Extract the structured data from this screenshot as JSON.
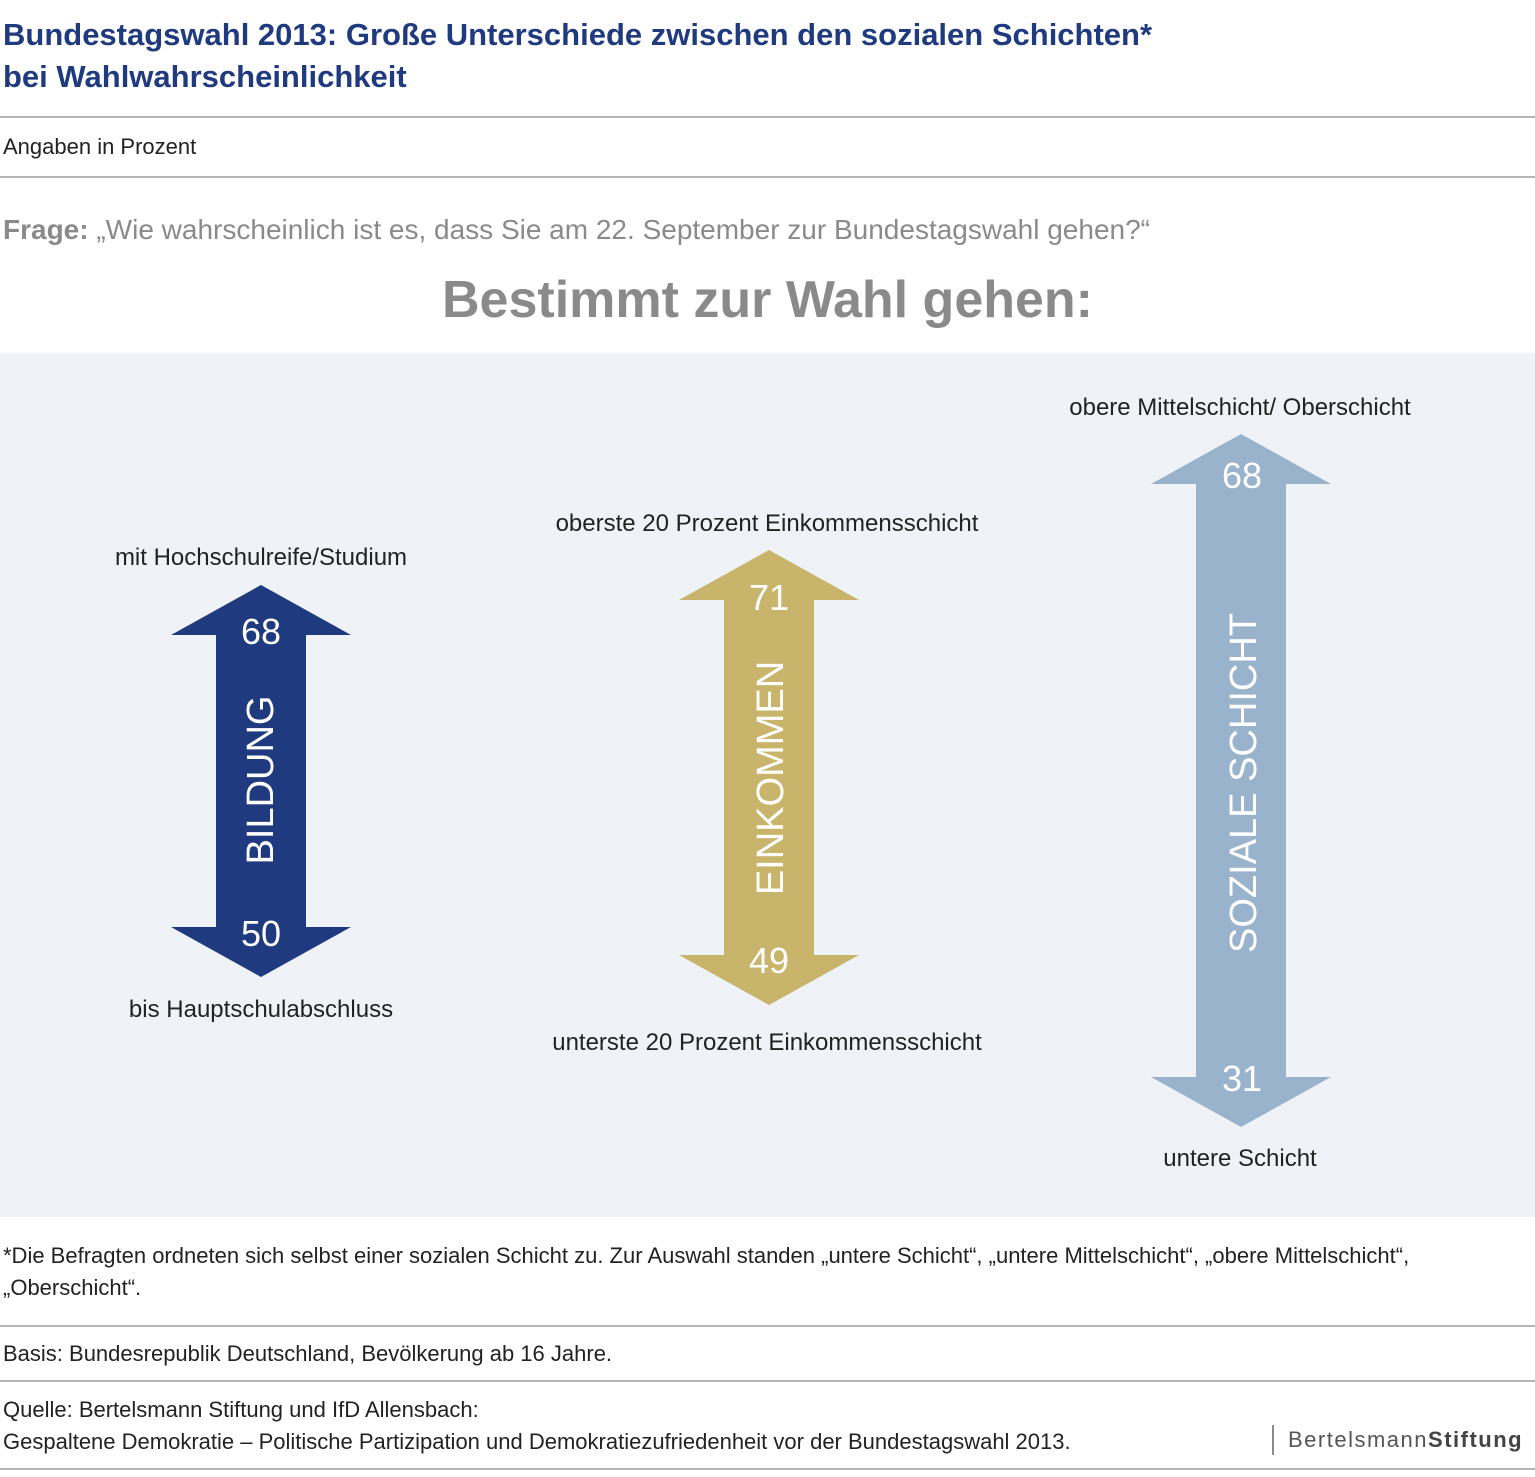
{
  "header": {
    "title_line1": "Bundestagswahl 2013: Große Unterschiede zwischen den sozialen Schichten*",
    "title_line2": "bei Wahlwahrscheinlichkeit",
    "units": "Angaben in Prozent",
    "question_label": "Frage:",
    "question_text": "„Wie wahrscheinlich ist es, dass Sie am 22. September zur Bundestagswahl gehen?“",
    "headline": "Bestimmt zur Wahl gehen:"
  },
  "chart_data": {
    "type": "range-arrows",
    "unit": "Prozent",
    "groups": [
      {
        "name": "BILDUNG",
        "color": "#1f3a7e",
        "high_label": "mit Hochschulreife/Studium",
        "high": 68,
        "low_label": "bis Hauptschulabschluss",
        "low": 50
      },
      {
        "name": "EINKOMMEN",
        "color": "#c8b46a",
        "high_label": "oberste 20 Prozent Einkommensschicht",
        "high": 71,
        "low_label": "unterste 20 Prozent Einkommensschicht",
        "low": 49
      },
      {
        "name": "SOZIALE SCHICHT",
        "color": "#9ab3cc",
        "high_label": "obere Mittelschicht/ Oberschicht",
        "high": 68,
        "low_label": "untere Schicht",
        "low": 31
      }
    ]
  },
  "footer": {
    "footnote": "*Die Befragten ordneten sich selbst einer sozialen Schicht zu. Zur Auswahl standen „untere Schicht“, „untere Mittelschicht“, „obere Mittelschicht“, „Oberschicht“.",
    "basis": "Basis: Bundesrepublik Deutschland, Bevölkerung ab 16 Jahre.",
    "source_line1": "Quelle: Bertelsmann Stiftung und IfD Allensbach:",
    "source_line2": "Gespaltene Demokratie – Politische Partizipation und Demokratiezufriedenheit vor der Bundestagswahl 2013.",
    "logo_part1": "Bertelsmann",
    "logo_part2": "Stiftung"
  }
}
